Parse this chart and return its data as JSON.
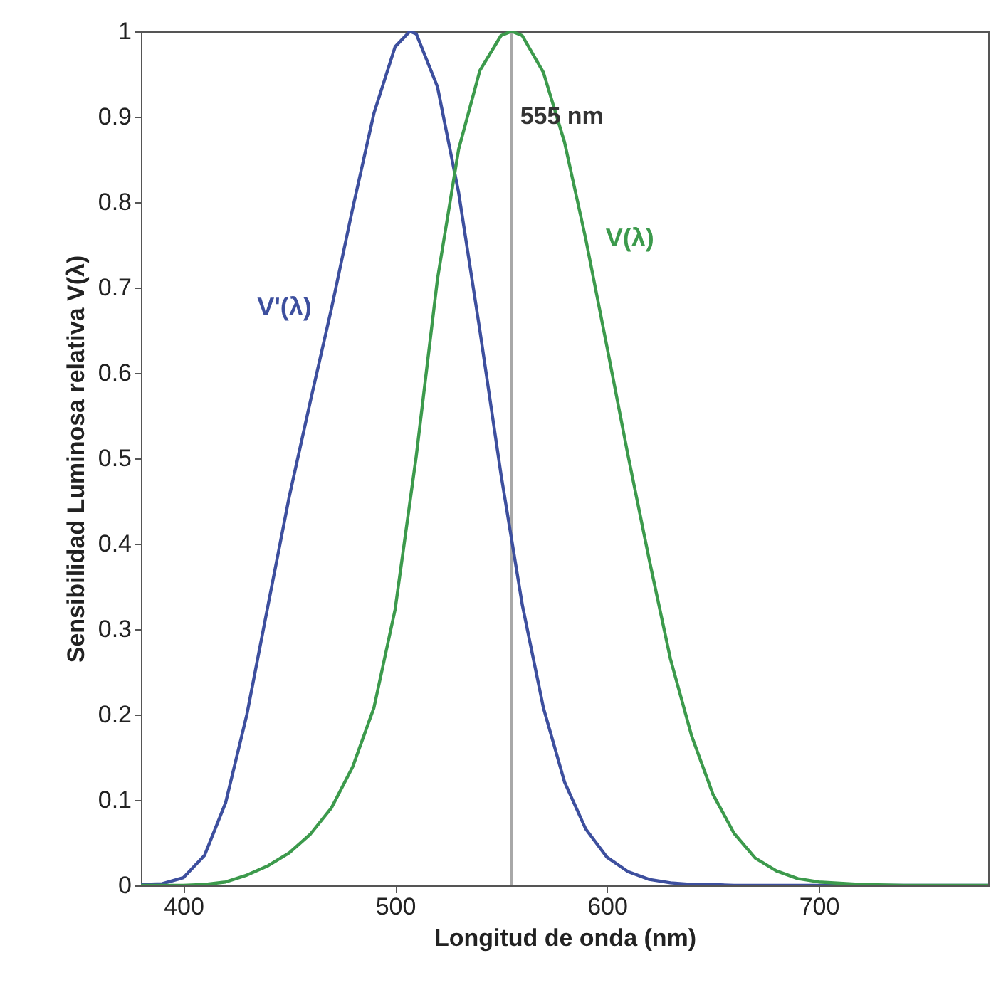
{
  "chart_data": {
    "type": "line",
    "xlabel": "Longitud de onda (nm)",
    "ylabel": "Sensibilidad Luminosa relativa V(λ)",
    "xlim": [
      380,
      780
    ],
    "xticks": [
      400,
      500,
      600,
      700
    ],
    "ylim": [
      0,
      1
    ],
    "yticks": [
      0,
      0.1,
      0.2,
      0.3,
      0.4,
      0.5,
      0.6,
      0.7,
      0.8,
      0.9,
      1
    ],
    "grid": false,
    "legend": false,
    "series": [
      {
        "name": "V'(λ)",
        "color": "#3d4f9e",
        "x": [
          380,
          390,
          400,
          410,
          420,
          430,
          440,
          450,
          460,
          470,
          480,
          490,
          500,
          507,
          510,
          520,
          530,
          540,
          550,
          560,
          570,
          580,
          590,
          600,
          610,
          620,
          630,
          640,
          650,
          660,
          680,
          700,
          780
        ],
        "values": [
          0.001,
          0.002,
          0.009,
          0.035,
          0.097,
          0.2,
          0.328,
          0.455,
          0.567,
          0.676,
          0.793,
          0.904,
          0.982,
          1,
          0.997,
          0.935,
          0.811,
          0.65,
          0.481,
          0.329,
          0.208,
          0.121,
          0.066,
          0.033,
          0.016,
          0.007,
          0.003,
          0.001,
          0.001,
          0,
          0,
          0,
          0
        ]
      },
      {
        "name": "V(λ)",
        "color": "#3c9a4c",
        "x": [
          380,
          390,
          400,
          410,
          420,
          430,
          440,
          450,
          460,
          470,
          480,
          490,
          500,
          510,
          520,
          530,
          540,
          550,
          555,
          560,
          570,
          580,
          590,
          600,
          610,
          620,
          630,
          640,
          650,
          660,
          670,
          680,
          690,
          700,
          720,
          740,
          780
        ],
        "values": [
          0,
          0,
          0,
          0.001,
          0.004,
          0.012,
          0.023,
          0.038,
          0.06,
          0.091,
          0.139,
          0.208,
          0.323,
          0.503,
          0.71,
          0.862,
          0.954,
          0.995,
          1,
          0.995,
          0.952,
          0.87,
          0.757,
          0.631,
          0.503,
          0.381,
          0.265,
          0.175,
          0.107,
          0.061,
          0.032,
          0.017,
          0.008,
          0.004,
          0.001,
          0,
          0
        ]
      }
    ],
    "ref_lines": [
      {
        "axis": "x",
        "value": 555,
        "color": "#a8a8a8",
        "label": "555 nm"
      }
    ]
  }
}
